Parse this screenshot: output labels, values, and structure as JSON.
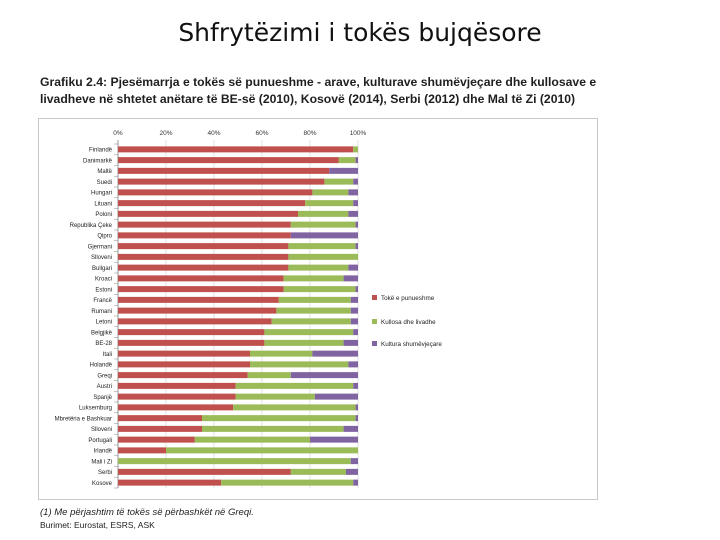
{
  "slide": {
    "title": "Shfrytëzimi i tokës bujqësore"
  },
  "caption": {
    "line1": "Grafiku 2.4: Pjesëmarrja e tokës së punueshme - arave, kulturave shumëvjeçare dhe kullosave e",
    "line2": "livadheve në shtetet anëtare të BE-së (2010), Kosovë (2014), Serbi (2012) dhe Mal të Zi (2010)"
  },
  "footnote": "(1) Me përjashtim të tokës së përbashkët në Greqi.",
  "source": "Burimet: Eurostat, ESRS, ASK",
  "chart_data": {
    "type": "bar",
    "orientation": "horizontal",
    "stacked": true,
    "xlim": [
      0,
      100
    ],
    "xticks": [
      "0%",
      "20%",
      "40%",
      "60%",
      "80%",
      "100%"
    ],
    "categories": [
      "Finlandë",
      "Danimarkë",
      "Maltë",
      "Suedi",
      "Hungari",
      "Lituani",
      "Poloni",
      "Republika Çeke",
      "Qipro",
      "Gjermani",
      "Slloveni",
      "Bullgari",
      "Kroaci",
      "Estoni",
      "Francë",
      "Rumani",
      "Letoni",
      "Belgjikë",
      "BE-28",
      "Itali",
      "Holandë",
      "Greqi",
      "Austri",
      "Spanjë",
      "Luksemburg",
      "Mbretëria e Bashkuar",
      "Slloveni",
      "Portugali",
      "Irlandë",
      "Mali i Zi",
      "Serbi",
      "Kosove"
    ],
    "series": [
      {
        "name": "Tokë e punueshme",
        "color": "#c0504d",
        "values": [
          98,
          92,
          88,
          86,
          81,
          78,
          75,
          72,
          72,
          71,
          71,
          71,
          69,
          69,
          67,
          66,
          64,
          61,
          61,
          55,
          55,
          54,
          49,
          49,
          48,
          35,
          35,
          32,
          20,
          0,
          72,
          43
        ]
      },
      {
        "name": "Kullosa dhe livadhe",
        "color": "#9bbb59",
        "values": [
          2,
          7,
          0,
          12,
          15,
          20,
          21,
          27,
          0,
          28,
          29,
          25,
          25,
          30,
          30,
          31,
          33,
          37,
          33,
          26,
          41,
          18,
          49,
          33,
          51,
          64,
          59,
          48,
          80,
          97,
          23,
          55
        ]
      },
      {
        "name": "Kultura shumëvjeçare",
        "color": "#8064a2",
        "values": [
          0,
          1,
          12,
          2,
          4,
          2,
          4,
          1,
          28,
          1,
          0,
          4,
          6,
          1,
          3,
          3,
          3,
          2,
          6,
          19,
          4,
          28,
          2,
          18,
          1,
          1,
          6,
          20,
          0,
          3,
          5,
          2
        ]
      }
    ]
  }
}
